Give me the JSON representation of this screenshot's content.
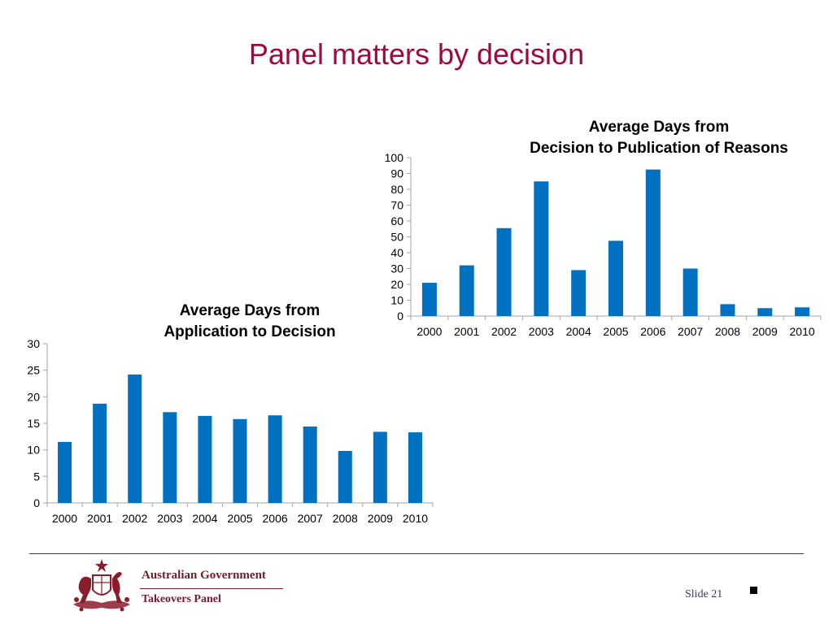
{
  "slide": {
    "title": "Panel matters by decision",
    "footer": {
      "org_line1": "Australian Government",
      "org_line2": "Takeovers Panel",
      "slide_label": "Slide 21"
    }
  },
  "colors": {
    "bar": "#0070c0",
    "title": "#a0093f",
    "axis": "#a6a6a6"
  },
  "chart_data": [
    {
      "type": "bar",
      "title_lines": [
        "Average Days from",
        "Application to Decision"
      ],
      "categories": [
        "2000",
        "2001",
        "2002",
        "2003",
        "2004",
        "2005",
        "2006",
        "2007",
        "2008",
        "2009",
        "2010"
      ],
      "values": [
        11.5,
        18.7,
        24.2,
        17.1,
        16.4,
        15.8,
        16.5,
        14.4,
        9.8,
        13.4,
        13.3
      ],
      "ylim": [
        0,
        30
      ],
      "yticks": [
        0,
        5,
        10,
        15,
        20,
        25,
        30
      ],
      "grid": false,
      "xlabel": "",
      "ylabel": ""
    },
    {
      "type": "bar",
      "title_lines": [
        "Average Days from",
        "Decision to Publication of Reasons"
      ],
      "categories": [
        "2000",
        "2001",
        "2002",
        "2003",
        "2004",
        "2005",
        "2006",
        "2007",
        "2008",
        "2009",
        "2010"
      ],
      "values": [
        21,
        32,
        55.5,
        85,
        29,
        47.5,
        92.5,
        30,
        7.5,
        5,
        5.5
      ],
      "ylim": [
        0,
        100
      ],
      "yticks": [
        0,
        10,
        20,
        30,
        40,
        50,
        60,
        70,
        80,
        90,
        100
      ],
      "grid": false,
      "xlabel": "",
      "ylabel": ""
    }
  ]
}
